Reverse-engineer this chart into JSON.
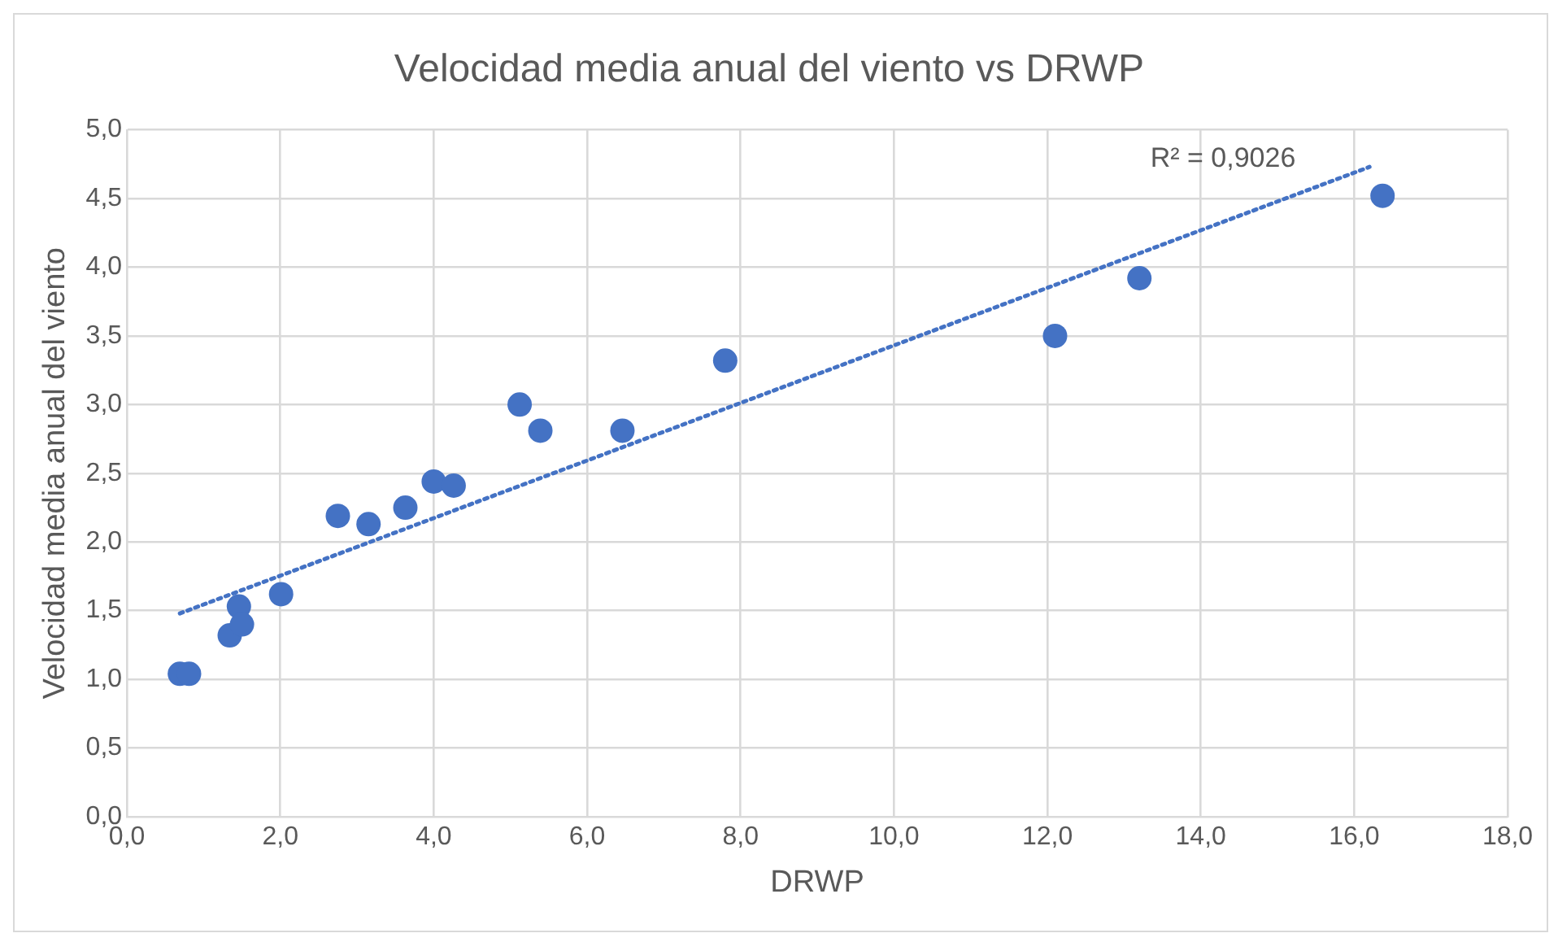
{
  "chart_data": {
    "type": "scatter",
    "title": "Velocidad media anual del viento vs DRWP",
    "xlabel": "DRWP",
    "ylabel": "Velocidad media anual del viento",
    "xlim": [
      0,
      18
    ],
    "ylim": [
      0,
      5
    ],
    "xticks": [
      {
        "value": 0,
        "label": "0,0"
      },
      {
        "value": 2,
        "label": "2,0"
      },
      {
        "value": 4,
        "label": "4,0"
      },
      {
        "value": 6,
        "label": "6,0"
      },
      {
        "value": 8,
        "label": "8,0"
      },
      {
        "value": 10,
        "label": "10,0"
      },
      {
        "value": 12,
        "label": "12,0"
      },
      {
        "value": 14,
        "label": "14,0"
      },
      {
        "value": 16,
        "label": "16,0"
      },
      {
        "value": 18,
        "label": "18,0"
      }
    ],
    "yticks": [
      {
        "value": 0,
        "label": "0,0"
      },
      {
        "value": 0.5,
        "label": "0,5"
      },
      {
        "value": 1,
        "label": "1,0"
      },
      {
        "value": 1.5,
        "label": "1,5"
      },
      {
        "value": 2,
        "label": "2,0"
      },
      {
        "value": 2.5,
        "label": "2,5"
      },
      {
        "value": 3,
        "label": "3,0"
      },
      {
        "value": 3.5,
        "label": "3,5"
      },
      {
        "value": 4,
        "label": "4,0"
      },
      {
        "value": 4.5,
        "label": "4,5"
      },
      {
        "value": 5,
        "label": "5,0"
      }
    ],
    "grid": true,
    "legend": false,
    "series": [
      {
        "type": "scatter",
        "color": "#4472c4",
        "marker": "circle",
        "x": [
          0.69,
          0.81,
          1.34,
          1.46,
          1.5,
          2.01,
          2.75,
          3.15,
          3.63,
          4.0,
          4.26,
          5.12,
          5.39,
          6.46,
          7.8,
          12.1,
          13.2,
          16.37
        ],
        "values": [
          1.04,
          1.04,
          1.32,
          1.53,
          1.4,
          1.62,
          2.19,
          2.13,
          2.25,
          2.44,
          2.41,
          3.0,
          2.81,
          2.81,
          3.32,
          3.5,
          3.92,
          4.52
        ]
      },
      {
        "type": "line",
        "color": "#4472c4",
        "marker": "none",
        "line_style": "dotted",
        "x": [
          0.69,
          16.2
        ],
        "values": [
          1.48,
          4.73
        ]
      }
    ],
    "annotations": [
      "R² = 0,9026"
    ]
  }
}
